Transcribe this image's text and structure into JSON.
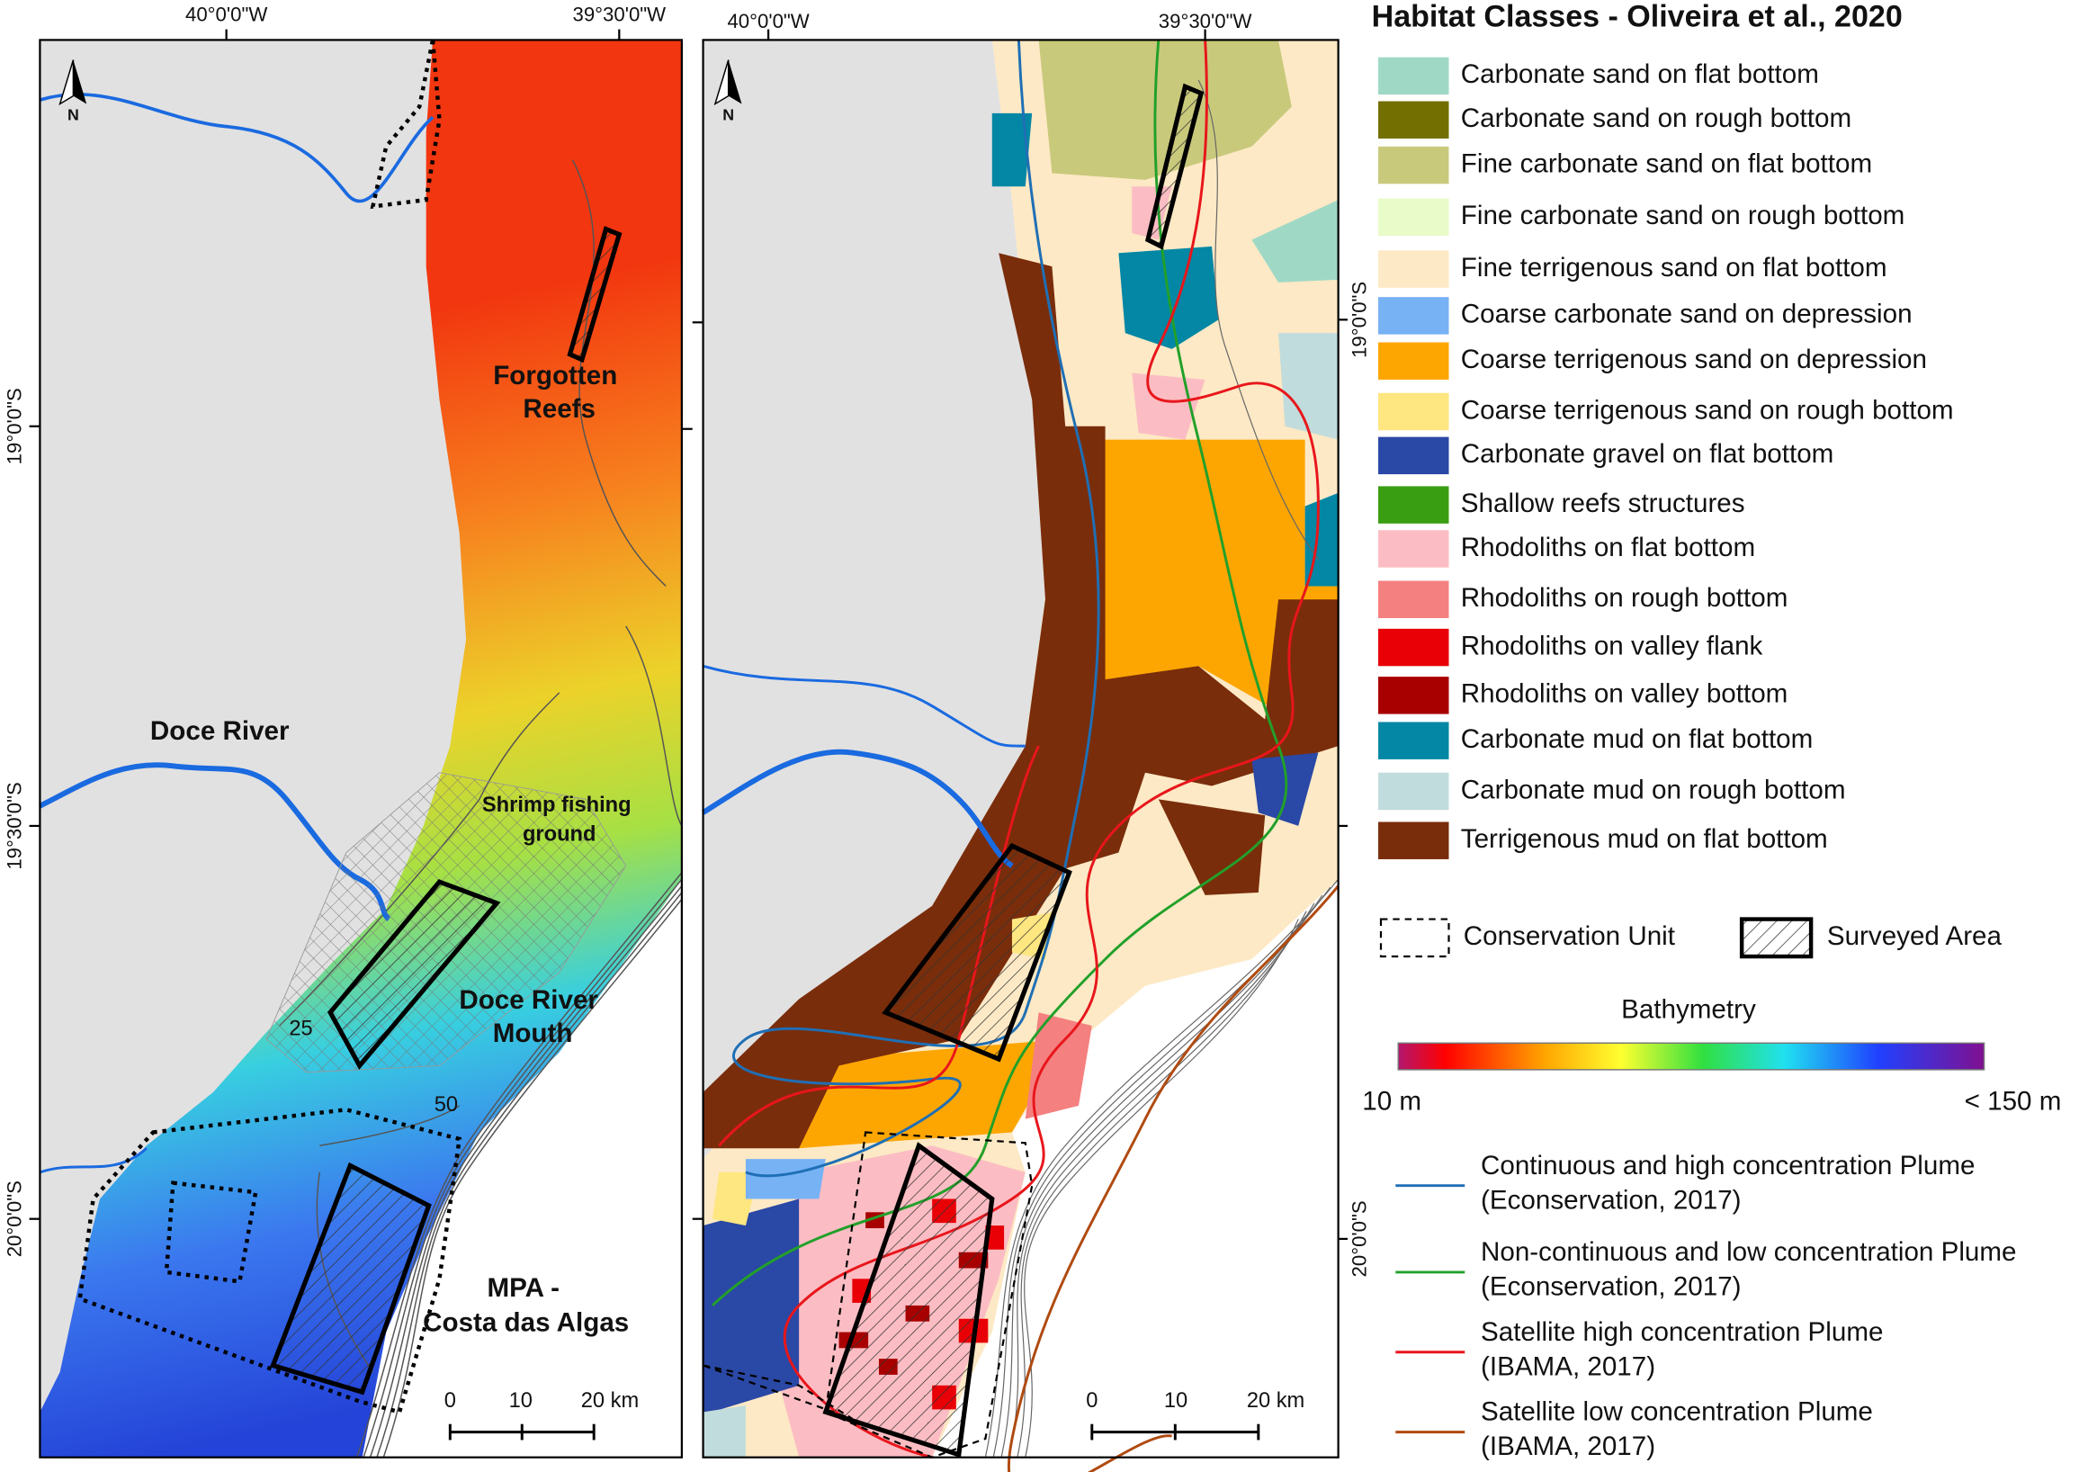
{
  "left_map": {
    "lon_labels": [
      "40°0'0\"W",
      "39°30'0\"W"
    ],
    "lat_labels": [
      "19°0'0\"S",
      "19°30'0\"S",
      "20°0'0\"S"
    ],
    "north": "N",
    "forgotten_reefs": [
      "Forgotten",
      "Reefs"
    ],
    "doce_river": "Doce River",
    "shrimp_ground": [
      "Shrimp fishing",
      "ground"
    ],
    "doce_mouth": [
      "Doce River",
      "Mouth"
    ],
    "contours": [
      "25",
      "50"
    ],
    "mpa": [
      "MPA -",
      "Costa das Algas"
    ],
    "scale_bar": [
      "0",
      "10",
      "20 km"
    ]
  },
  "right_map": {
    "lon_labels": [
      "40°0'0\"W",
      "39°30'0\"W"
    ],
    "lat_labels": [
      "19°0'0\"S",
      "20°0'0\"S"
    ],
    "north": "N",
    "scale_bar": [
      "0",
      "10",
      "20 km"
    ]
  },
  "legend": {
    "title": "Habitat Classes - Oliveira et al., 2020",
    "classes": [
      {
        "name": "Carbonate sand on flat bottom",
        "color": "#9fd9c6"
      },
      {
        "name": "Carbonate sand on rough bottom",
        "color": "#736f00"
      },
      {
        "name": "Fine carbonate sand on flat bottom",
        "color": "#c9c97c"
      },
      {
        "name": "Fine carbonate sand on rough bottom",
        "color": "#e9fbc9"
      },
      {
        "name": "Fine terrigenous sand on flat bottom",
        "color": "#fde9c5"
      },
      {
        "name": "Coarse carbonate sand on depression",
        "color": "#77b2f5"
      },
      {
        "name": "Coarse terrigenous sand on depression",
        "color": "#fda602"
      },
      {
        "name": "Coarse terrigenous sand on rough bottom",
        "color": "#fee680"
      },
      {
        "name": "Carbonate gravel on flat bottom",
        "color": "#2a48a5"
      },
      {
        "name": "Shallow reefs structures",
        "color": "#3a9e12"
      },
      {
        "name": "Rhodoliths on flat bottom",
        "color": "#fbbdc3"
      },
      {
        "name": "Rhodoliths on rough bottom",
        "color": "#f58080"
      },
      {
        "name": "Rhodoliths on valley flank",
        "color": "#e80006"
      },
      {
        "name": "Rhodoliths on valley bottom",
        "color": "#a80000"
      },
      {
        "name": "Carbonate mud on flat bottom",
        "color": "#0387a5"
      },
      {
        "name": "Carbonate mud on rough bottom",
        "color": "#c1dcdc"
      },
      {
        "name": "Terrigenous mud on flat bottom",
        "color": "#7a2d0b"
      }
    ],
    "conservation_unit": "Conservation Unit",
    "surveyed_area": "Surveyed Area",
    "bathymetry": {
      "title": "Bathymetry",
      "min": "10 m",
      "max": "< 150 m"
    },
    "plumes": [
      {
        "lines": [
          "Continuous and high concentration Plume",
          "(Econservation, 2017)"
        ],
        "color": "#1f6fb5"
      },
      {
        "lines": [
          "Non-continuous and low concentration Plume",
          "(Econservation, 2017)"
        ],
        "color": "#22a02a"
      },
      {
        "lines": [
          "Satellite high concentration Plume",
          "(IBAMA, 2017)"
        ],
        "color": "#e8161b"
      },
      {
        "lines": [
          "Satellite low concentration Plume",
          " (IBAMA, 2017)"
        ],
        "color": "#b04a10"
      }
    ]
  }
}
